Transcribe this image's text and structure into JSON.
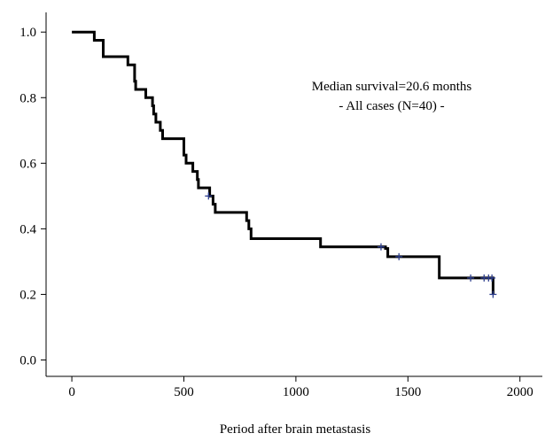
{
  "chart_data": {
    "type": "line",
    "subtype": "kaplan-meier step curve",
    "xlabel": "Period after brain metastasis",
    "ylabel": "",
    "xlim": [
      -115,
      2100
    ],
    "ylim": [
      -0.05,
      1.06
    ],
    "xticks": [
      0,
      500,
      1000,
      1500,
      2000
    ],
    "xtick_labels": [
      "0",
      "500",
      "1000",
      "1500",
      "2000"
    ],
    "yticks": [
      0.0,
      0.2,
      0.4,
      0.6,
      0.8,
      1.0
    ],
    "ytick_labels": [
      "0.0",
      "0.2",
      "0.4",
      "0.6",
      "0.8",
      "1.0"
    ],
    "grid": false,
    "annotations": [
      "Median survival=20.6 months",
      "- All cases (N=40) -"
    ],
    "colors": {
      "curve": "#000000",
      "censor": "#2e3f8f",
      "axis": "#000000"
    },
    "series": [
      {
        "steps": [
          [
            0,
            1.0
          ],
          [
            100,
            0.975
          ],
          [
            140,
            0.925
          ],
          [
            250,
            0.9
          ],
          [
            280,
            0.85
          ],
          [
            285,
            0.825
          ],
          [
            330,
            0.8
          ],
          [
            360,
            0.775
          ],
          [
            365,
            0.75
          ],
          [
            375,
            0.725
          ],
          [
            395,
            0.7
          ],
          [
            405,
            0.675
          ],
          [
            500,
            0.625
          ],
          [
            510,
            0.6
          ],
          [
            540,
            0.575
          ],
          [
            560,
            0.55
          ],
          [
            565,
            0.525
          ],
          [
            615,
            0.5
          ],
          [
            630,
            0.475
          ],
          [
            640,
            0.45
          ],
          [
            780,
            0.425
          ],
          [
            790,
            0.4
          ],
          [
            800,
            0.37
          ],
          [
            1110,
            0.345
          ],
          [
            1400,
            0.34
          ],
          [
            1410,
            0.315
          ],
          [
            1640,
            0.25
          ],
          [
            1880,
            0.2
          ]
        ],
        "end_x": 1880,
        "censored": [
          [
            610,
            0.5
          ],
          [
            1380,
            0.345
          ],
          [
            1460,
            0.315
          ],
          [
            1780,
            0.25
          ],
          [
            1840,
            0.25
          ],
          [
            1860,
            0.25
          ],
          [
            1875,
            0.25
          ],
          [
            1880,
            0.2
          ]
        ]
      }
    ]
  }
}
